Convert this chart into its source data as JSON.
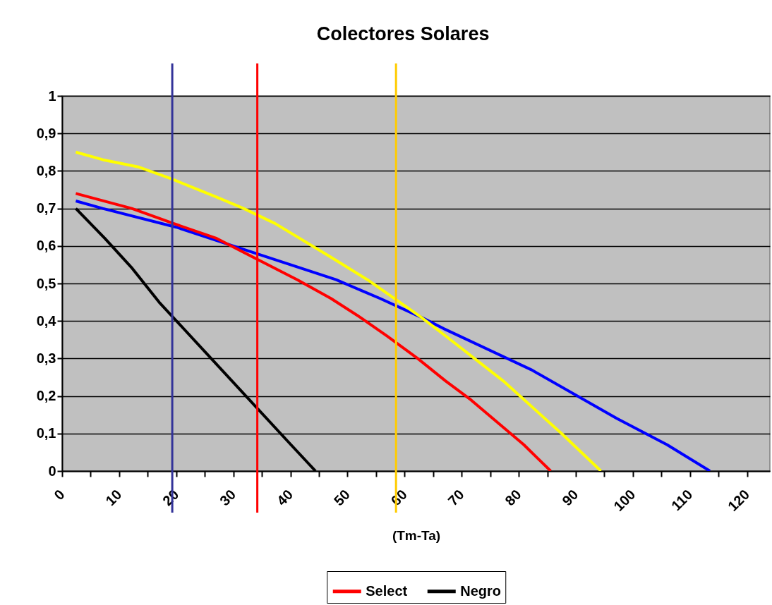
{
  "chart_data": {
    "type": "line",
    "title": "Colectores Solares",
    "xlabel": "(Tm-Ta)",
    "xlim": [
      0,
      124
    ],
    "ylim": [
      0,
      1
    ],
    "xticks": [
      0,
      {
        "value": 5,
        "label": null
      },
      10,
      {
        "value": 15,
        "label": null
      },
      20,
      {
        "value": 25,
        "label": null
      },
      30,
      {
        "value": 35,
        "label": null
      },
      40,
      {
        "value": 45,
        "label": null
      },
      50,
      {
        "value": 55,
        "label": null
      },
      60,
      {
        "value": 65,
        "label": null
      },
      70,
      {
        "value": 75,
        "label": null
      },
      80,
      {
        "value": 85,
        "label": null
      },
      90,
      {
        "value": 95,
        "label": null
      },
      100,
      {
        "value": 105,
        "label": null
      },
      110,
      {
        "value": 115,
        "label": null
      },
      120
    ],
    "yticks": [
      0,
      {
        "value": 0.1,
        "label": "0,1"
      },
      {
        "value": 0.2,
        "label": "0,2"
      },
      {
        "value": 0.3,
        "label": "0,3"
      },
      {
        "value": 0.4,
        "label": "0,4"
      },
      {
        "value": 0.5,
        "label": "0,5"
      },
      {
        "value": 0.6,
        "label": "0,6"
      },
      {
        "value": 0.7,
        "label": "0,7"
      },
      {
        "value": 0.8,
        "label": "0,8"
      },
      {
        "value": 0.9,
        "label": "0,9"
      },
      1
    ],
    "grid": "y",
    "legend": "bottom",
    "marker": "none",
    "line_style": "solid",
    "series": [
      {
        "color": "#0000ff",
        "x": [
          2.4,
          7.1,
          20,
          30,
          40,
          48,
          55.7,
          62.9,
          66.8,
          82.2,
          97.2,
          106,
          113.5
        ],
        "values": [
          0.72,
          0.7,
          0.65,
          0.6,
          0.55,
          0.51,
          0.46,
          0.41,
          0.38,
          0.27,
          0.14,
          0.07,
          0
        ]
      },
      {
        "color": "#ffff00",
        "x": [
          2.4,
          7.1,
          13.5,
          19,
          27.1,
          31.8,
          37.3,
          47.1,
          53.5,
          62.9,
          67.2,
          77.3,
          87.5,
          94.4
        ],
        "values": [
          0.85,
          0.83,
          0.81,
          0.78,
          0.73,
          0.7,
          0.66,
          0.57,
          0.51,
          0.41,
          0.36,
          0.24,
          0.1,
          0
        ]
      },
      {
        "name": "Select",
        "color": "#ff0000",
        "x": [
          2.4,
          12.2,
          19.5,
          27.1,
          32.2,
          41.2,
          47.1,
          52.2,
          56.9,
          62.3,
          67.2,
          71.6,
          80.9,
          85.6
        ],
        "values": [
          0.74,
          0.7,
          0.66,
          0.62,
          0.58,
          0.51,
          0.46,
          0.41,
          0.36,
          0.3,
          0.24,
          0.19,
          0.07,
          0
        ]
      },
      {
        "name": "Negro",
        "color": "#000000",
        "x": [
          2.4,
          7.5,
          12.3,
          17,
          32.2,
          40.1,
          44.4
        ],
        "values": [
          0.7,
          0.62,
          0.54,
          0.45,
          0.2,
          0.07,
          0
        ]
      }
    ],
    "ref_lines": [
      {
        "axis": "x",
        "value": 19.3,
        "color": "#333399"
      },
      {
        "axis": "x",
        "value": 34.2,
        "color": "#ff0000"
      },
      {
        "axis": "x",
        "value": 58.5,
        "color": "#ffcc00"
      }
    ]
  }
}
